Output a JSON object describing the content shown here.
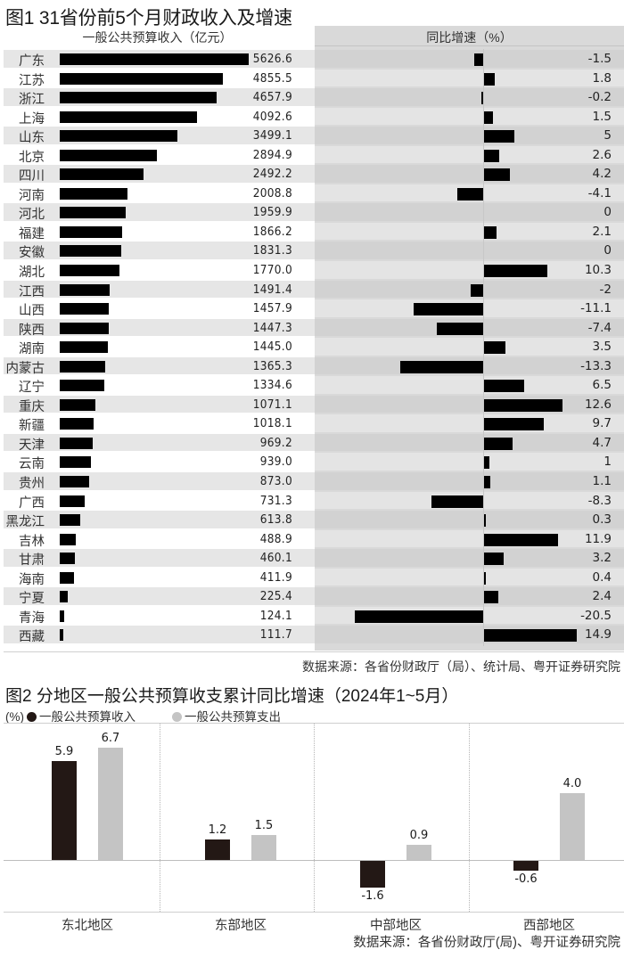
{
  "figure1": {
    "title": "图1 31省份前5个月财政收入及增速",
    "left_header": "一般公共预算收入（亿元）",
    "right_header": "同比增速（%）",
    "source": "数据来源：各省份财政厅（局）、统计局、粤开证券研究院",
    "rows": [
      {
        "province": "广东",
        "revenue": "5626.6",
        "growth": "-1.5"
      },
      {
        "province": "江苏",
        "revenue": "4855.5",
        "growth": "1.8"
      },
      {
        "province": "浙江",
        "revenue": "4657.9",
        "growth": "-0.2"
      },
      {
        "province": "上海",
        "revenue": "4092.6",
        "growth": "1.5"
      },
      {
        "province": "山东",
        "revenue": "3499.1",
        "growth": "5"
      },
      {
        "province": "北京",
        "revenue": "2894.9",
        "growth": "2.6"
      },
      {
        "province": "四川",
        "revenue": "2492.2",
        "growth": "4.2"
      },
      {
        "province": "河南",
        "revenue": "2008.8",
        "growth": "-4.1"
      },
      {
        "province": "河北",
        "revenue": "1959.9",
        "growth": "0"
      },
      {
        "province": "福建",
        "revenue": "1866.2",
        "growth": "2.1"
      },
      {
        "province": "安徽",
        "revenue": "1831.3",
        "growth": "0"
      },
      {
        "province": "湖北",
        "revenue": "1770.0",
        "growth": "10.3"
      },
      {
        "province": "江西",
        "revenue": "1491.4",
        "growth": "-2"
      },
      {
        "province": "山西",
        "revenue": "1457.9",
        "growth": "-11.1"
      },
      {
        "province": "陕西",
        "revenue": "1447.3",
        "growth": "-7.4"
      },
      {
        "province": "湖南",
        "revenue": "1445.0",
        "growth": "3.5"
      },
      {
        "province": "内蒙古",
        "revenue": "1365.3",
        "growth": "-13.3"
      },
      {
        "province": "辽宁",
        "revenue": "1334.6",
        "growth": "6.5"
      },
      {
        "province": "重庆",
        "revenue": "1071.1",
        "growth": "12.6"
      },
      {
        "province": "新疆",
        "revenue": "1018.1",
        "growth": "9.7"
      },
      {
        "province": "天津",
        "revenue": "969.2",
        "growth": "4.7"
      },
      {
        "province": "云南",
        "revenue": "939.0",
        "growth": "1"
      },
      {
        "province": "贵州",
        "revenue": "873.0",
        "growth": "1.1"
      },
      {
        "province": "广西",
        "revenue": "731.3",
        "growth": "-8.3"
      },
      {
        "province": "黑龙江",
        "revenue": "613.8",
        "growth": "0.3"
      },
      {
        "province": "吉林",
        "revenue": "488.9",
        "growth": "11.9"
      },
      {
        "province": "甘肃",
        "revenue": "460.1",
        "growth": "3.2"
      },
      {
        "province": "海南",
        "revenue": "411.9",
        "growth": "0.4"
      },
      {
        "province": "宁夏",
        "revenue": "225.4",
        "growth": "2.4"
      },
      {
        "province": "青海",
        "revenue": "124.1",
        "growth": "-20.5"
      },
      {
        "province": "西藏",
        "revenue": "111.7",
        "growth": "14.9"
      }
    ]
  },
  "figure2": {
    "title": "图2 分地区一般公共预算收支累计同比增速（2024年1~5月）",
    "unit": "(%)",
    "legend": [
      {
        "label": "一般公共预算收入",
        "color": "#231815"
      },
      {
        "label": "一般公共预算支出",
        "color": "#c4c4c4"
      }
    ],
    "source": "数据来源：各省份财政厅(局)、粤开证券研究院",
    "groups": [
      {
        "region": "东北地区",
        "revenue": "5.9",
        "expenditure": "6.7"
      },
      {
        "region": "东部地区",
        "revenue": "1.2",
        "expenditure": "1.5"
      },
      {
        "region": "中部地区",
        "revenue": "-1.6",
        "expenditure": "0.9"
      },
      {
        "region": "西部地区",
        "revenue": "-0.6",
        "expenditure": "4.0"
      }
    ]
  },
  "chart_data": [
    {
      "type": "bar",
      "orientation": "horizontal",
      "title": "图1 31省份前5个月财政收入及增速",
      "xlabel": "一般公共预算收入（亿元）",
      "categories": [
        "广东",
        "江苏",
        "浙江",
        "上海",
        "山东",
        "北京",
        "四川",
        "河南",
        "河北",
        "福建",
        "安徽",
        "湖北",
        "江西",
        "山西",
        "陕西",
        "湖南",
        "内蒙古",
        "辽宁",
        "重庆",
        "新疆",
        "天津",
        "云南",
        "贵州",
        "广西",
        "黑龙江",
        "吉林",
        "甘肃",
        "海南",
        "宁夏",
        "青海",
        "西藏"
      ],
      "series": [
        {
          "name": "一般公共预算收入（亿元）",
          "values": [
            5626.6,
            4855.5,
            4657.9,
            4092.6,
            3499.1,
            2894.9,
            2492.2,
            2008.8,
            1959.9,
            1866.2,
            1831.3,
            1770.0,
            1491.4,
            1457.9,
            1447.3,
            1445.0,
            1365.3,
            1334.6,
            1071.1,
            1018.1,
            969.2,
            939.0,
            873.0,
            731.3,
            613.8,
            488.9,
            460.1,
            411.9,
            225.4,
            124.1,
            111.7
          ]
        },
        {
          "name": "同比增速（%）",
          "values": [
            -1.5,
            1.8,
            -0.2,
            1.5,
            5,
            2.6,
            4.2,
            -4.1,
            0,
            2.1,
            0,
            10.3,
            -2,
            -11.1,
            -7.4,
            3.5,
            -13.3,
            6.5,
            12.6,
            9.7,
            4.7,
            1,
            1.1,
            -8.3,
            0.3,
            11.9,
            3.2,
            0.4,
            2.4,
            -20.5,
            14.9
          ]
        }
      ],
      "source": "数据来源：各省份财政厅（局）、统计局、粤开证券研究院",
      "grid": false,
      "legend_position": "none"
    },
    {
      "type": "bar",
      "title": "图2 分地区一般公共预算收支累计同比增速（2024年1~5月）",
      "ylabel": "(%)",
      "categories": [
        "东北地区",
        "东部地区",
        "中部地区",
        "西部地区"
      ],
      "series": [
        {
          "name": "一般公共预算收入",
          "values": [
            5.9,
            1.2,
            -1.6,
            -0.6
          ]
        },
        {
          "name": "一般公共预算支出",
          "values": [
            6.7,
            1.5,
            0.9,
            4.0
          ]
        }
      ],
      "ylim": [
        -3,
        7.5
      ],
      "grid": false,
      "legend_position": "top-left",
      "source": "数据来源：各省份财政厅(局)、粤开证券研究院"
    }
  ]
}
